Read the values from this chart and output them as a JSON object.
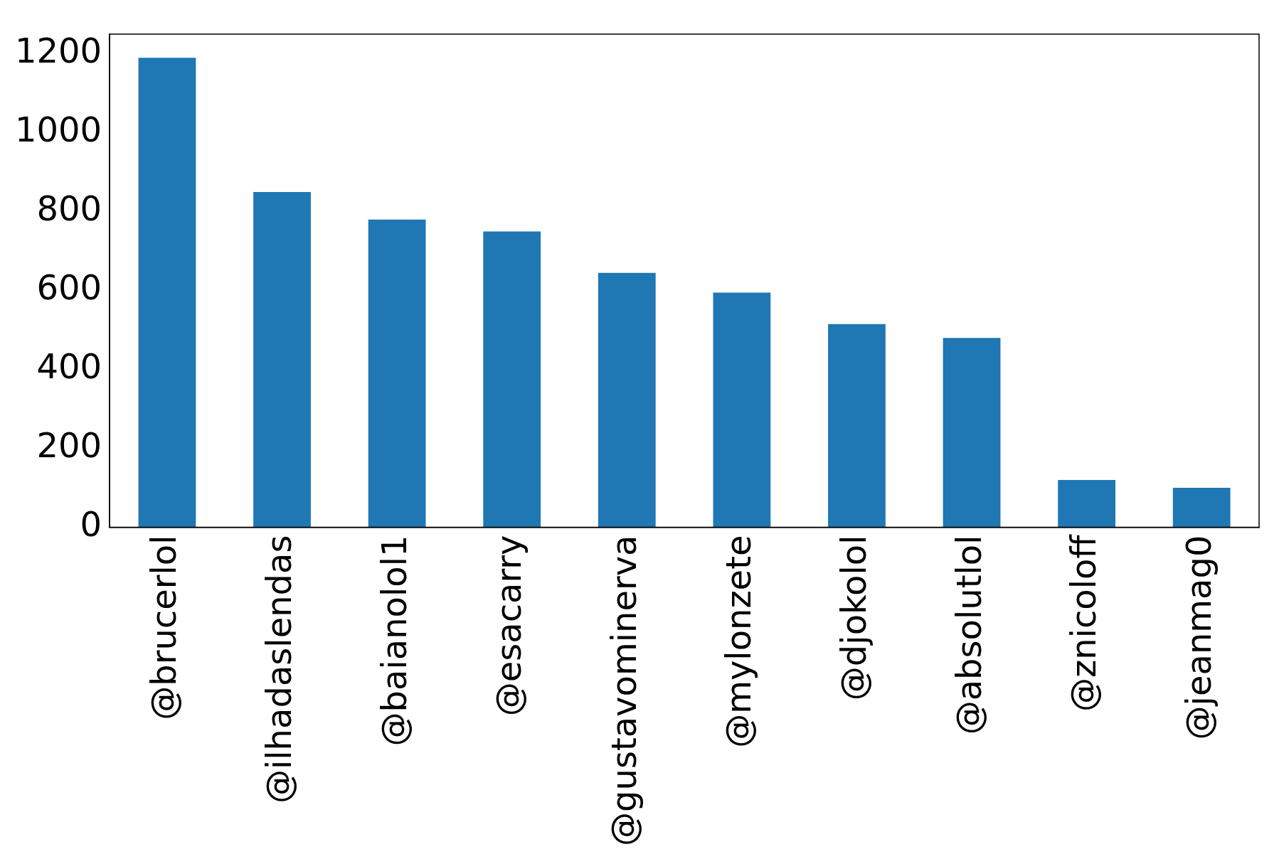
{
  "chart_data": {
    "type": "bar",
    "categories": [
      "@brucerlol",
      "@ilhadaslendas",
      "@baianolol1",
      "@esacarry",
      "@gustavominerva",
      "@mylonzete",
      "@djokolol",
      "@absolutlol",
      "@znicoloff",
      "@jeanmag0"
    ],
    "values": [
      1190,
      850,
      780,
      750,
      645,
      595,
      515,
      480,
      120,
      100
    ],
    "color": "#1f77b4",
    "ylim": [
      0,
      1250
    ],
    "yticks": [
      0,
      200,
      400,
      600,
      800,
      1000,
      1200
    ],
    "grid": false,
    "legend": false
  }
}
